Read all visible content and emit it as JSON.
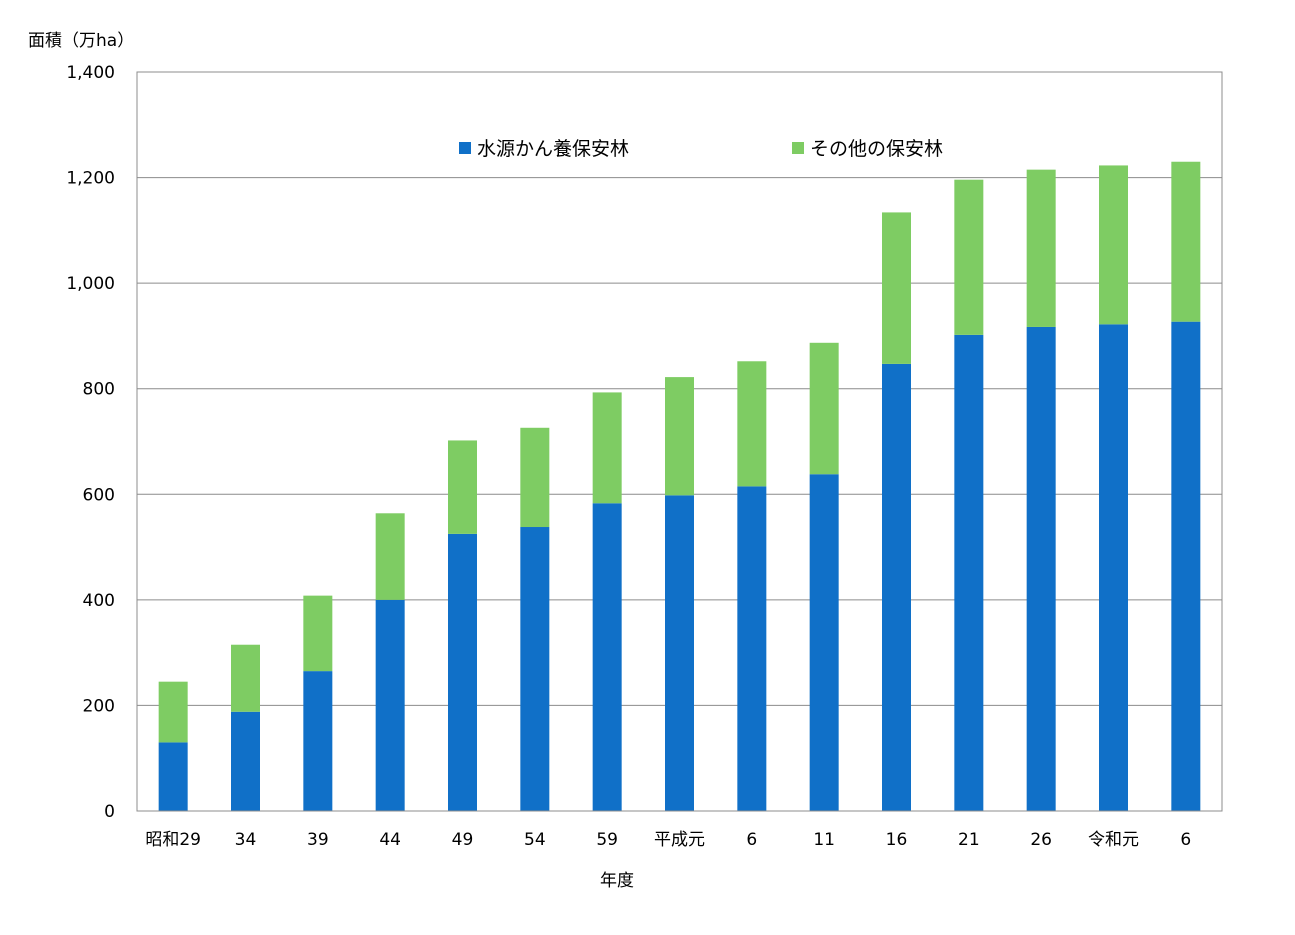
{
  "chart_data": {
    "type": "bar",
    "stacked": true,
    "categories": [
      "昭和29",
      "34",
      "39",
      "44",
      "49",
      "54",
      "59",
      "平成元",
      "6",
      "11",
      "16",
      "21",
      "26",
      "令和元",
      "6"
    ],
    "series": [
      {
        "name": "水源かん養保安林",
        "color": "#1070C8",
        "values": [
          130,
          188,
          265,
          400,
          525,
          538,
          583,
          598,
          615,
          638,
          847,
          902,
          917,
          922,
          927
        ]
      },
      {
        "name": "その他の保安林",
        "color": "#7ECC63",
        "values": [
          115,
          127,
          143,
          164,
          177,
          188,
          210,
          224,
          237,
          249,
          287,
          294,
          298,
          301,
          303
        ]
      }
    ],
    "ylabel": "面積（万ha）",
    "xlabel": "年度",
    "ylim": [
      0,
      1400
    ],
    "yticks": [
      "0",
      "200",
      "400",
      "600",
      "800",
      "1,000",
      "1,200",
      "1,400"
    ],
    "grid": true,
    "legend": "top-center"
  }
}
